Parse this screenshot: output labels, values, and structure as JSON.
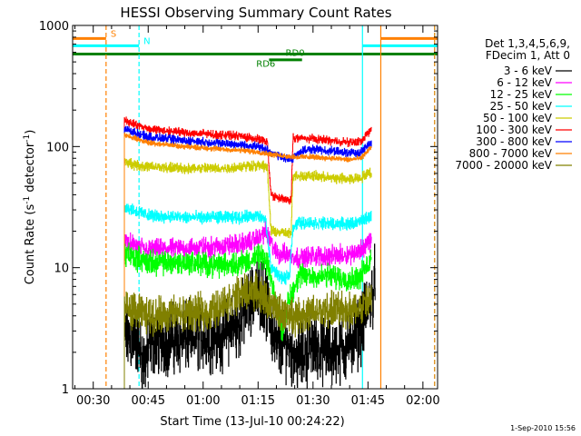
{
  "chart_data": {
    "type": "line",
    "title": "HESSI Observing Summary Count Rates",
    "xlabel": "Start Time (13-Jul-10 00:24:22)",
    "ylabel_main": "Count Rate (s",
    "ylabel_sup1": "-1",
    "ylabel_mid": " detector",
    "ylabel_sup2": "-1",
    "ylabel_end": ")",
    "yscale": "log",
    "xlim_min": [
      24.37,
      124.0
    ],
    "ylim": [
      1,
      1000
    ],
    "x_ticks": [
      {
        "label": "00:30",
        "min": 30
      },
      {
        "label": "00:45",
        "min": 45
      },
      {
        "label": "01:00",
        "min": 60
      },
      {
        "label": "01:15",
        "min": 75
      },
      {
        "label": "01:30",
        "min": 90
      },
      {
        "label": "01:45",
        "min": 105
      },
      {
        "label": "02:00",
        "min": 120
      }
    ],
    "y_ticks": [
      {
        "label": "1",
        "v": 1
      },
      {
        "label": "10",
        "v": 10
      },
      {
        "label": "100",
        "v": 100
      },
      {
        "label": "1000",
        "v": 1000
      }
    ],
    "legend_header": [
      "Det 1,3,4,5,6,9,",
      "FDecim 1, Att 0"
    ],
    "legend_position": "right",
    "flags": [
      {
        "label": "S",
        "color": "#ff8000",
        "segments": [
          [
            24.37,
            33.5
          ],
          [
            108.5,
            124
          ]
        ],
        "level": 780,
        "marker_min": 33.5
      },
      {
        "label": "N",
        "color": "#00ffff",
        "segments": [
          [
            24.37,
            42.5
          ],
          [
            103.5,
            124
          ]
        ],
        "level": 680,
        "marker_min": 42.5
      },
      {
        "label": "RD0",
        "color": "#008000",
        "segments": [
          [
            24.37,
            124
          ]
        ],
        "level": 580,
        "label_min": 82.5,
        "label_level": 600
      },
      {
        "label": "RD6",
        "color": "#008000",
        "segments": [
          [
            78,
            87
          ]
        ],
        "level": 520,
        "label_min": 74.5,
        "label_level": 490
      }
    ],
    "vlines": [
      {
        "min": 33.5,
        "color": "#ff8000",
        "style": "dashed"
      },
      {
        "min": 42.5,
        "color": "#00ffff",
        "style": "dashed"
      },
      {
        "min": 103.5,
        "color": "#00ffff",
        "style": "solid"
      },
      {
        "min": 108.5,
        "color": "#ff8000",
        "style": "solid"
      },
      {
        "min": 123.2,
        "color": "#00ffff",
        "style": "dashed"
      },
      {
        "min": 123.2,
        "color": "#ff8000",
        "style": "dashed"
      }
    ],
    "series": [
      {
        "name": "3 - 6 keV",
        "color": "#000000",
        "noise": 0.35,
        "points": [
          [
            38.5,
            2.6
          ],
          [
            42,
            2.5
          ],
          [
            44,
            1.6
          ],
          [
            46,
            2.5
          ],
          [
            55,
            2.6
          ],
          [
            65,
            2.8
          ],
          [
            70,
            3.5
          ],
          [
            73,
            5.5
          ],
          [
            76,
            6.5
          ],
          [
            78,
            4.0
          ],
          [
            80,
            2.2
          ],
          [
            83,
            2.4
          ],
          [
            86,
            1.8
          ],
          [
            90,
            2.3
          ],
          [
            95,
            2.0
          ],
          [
            100,
            2.3
          ],
          [
            103,
            3.2
          ],
          [
            105,
            4.5
          ],
          [
            107,
            8.0
          ]
        ]
      },
      {
        "name": "6 - 12 keV",
        "color": "#ff00ff",
        "noise": 0.1,
        "points": [
          [
            38.5,
            16
          ],
          [
            42,
            15
          ],
          [
            45,
            14
          ],
          [
            55,
            14.5
          ],
          [
            65,
            15
          ],
          [
            72,
            16
          ],
          [
            75,
            17.5
          ],
          [
            77,
            20
          ],
          [
            78.5,
            16
          ],
          [
            80,
            13
          ],
          [
            83,
            13
          ],
          [
            86,
            12
          ],
          [
            90,
            12.5
          ],
          [
            95,
            12.5
          ],
          [
            100,
            13
          ],
          [
            103,
            14
          ],
          [
            106,
            17
          ]
        ]
      },
      {
        "name": "12 - 25 keV",
        "color": "#00ff00",
        "noise": 0.12,
        "points": [
          [
            38.5,
            13
          ],
          [
            42,
            12
          ],
          [
            45,
            11
          ],
          [
            55,
            11
          ],
          [
            65,
            10.5
          ],
          [
            70,
            11
          ],
          [
            73,
            11.5
          ],
          [
            76,
            12.5
          ],
          [
            78,
            9.5
          ],
          [
            80,
            5.0
          ],
          [
            81.5,
            3.0
          ],
          [
            83,
            5.0
          ],
          [
            86,
            8.5
          ],
          [
            90,
            8.5
          ],
          [
            95,
            8.5
          ],
          [
            100,
            8.0
          ],
          [
            103,
            8.5
          ],
          [
            106,
            12
          ]
        ]
      },
      {
        "name": "25 - 50 keV",
        "color": "#00ffff",
        "noise": 0.06,
        "points": [
          [
            38.5,
            32
          ],
          [
            42,
            29
          ],
          [
            45,
            27
          ],
          [
            55,
            26
          ],
          [
            65,
            26
          ],
          [
            70,
            26
          ],
          [
            74,
            27
          ],
          [
            77,
            25
          ],
          [
            78.5,
            10
          ],
          [
            80,
            9.0
          ],
          [
            82,
            8.0
          ],
          [
            83.5,
            8.5
          ],
          [
            84.5,
            22
          ],
          [
            86,
            23.5
          ],
          [
            90,
            23.5
          ],
          [
            95,
            23
          ],
          [
            100,
            23
          ],
          [
            103,
            24
          ],
          [
            106,
            27
          ]
        ]
      },
      {
        "name": "50 - 100 keV",
        "color": "#cccc00",
        "noise": 0.05,
        "points": [
          [
            38.5,
            75
          ],
          [
            42,
            70
          ],
          [
            45,
            68
          ],
          [
            55,
            66
          ],
          [
            65,
            66
          ],
          [
            70,
            68
          ],
          [
            74,
            70
          ],
          [
            77.5,
            68
          ],
          [
            78.5,
            20
          ],
          [
            84,
            19
          ],
          [
            84.5,
            58
          ],
          [
            90,
            57
          ],
          [
            95,
            55
          ],
          [
            100,
            54
          ],
          [
            103,
            55
          ],
          [
            106,
            62
          ]
        ]
      },
      {
        "name": "100 - 300 keV",
        "color": "#ff0000",
        "noise": 0.04,
        "points": [
          [
            38.5,
            165
          ],
          [
            42,
            150
          ],
          [
            45,
            140
          ],
          [
            55,
            130
          ],
          [
            65,
            125
          ],
          [
            70,
            122
          ],
          [
            75,
            115
          ],
          [
            77.5,
            108
          ],
          [
            78.5,
            40
          ],
          [
            80,
            38
          ],
          [
            83,
            36
          ],
          [
            84,
            36
          ],
          [
            84.5,
            118
          ],
          [
            90,
            116
          ],
          [
            95,
            112
          ],
          [
            100,
            108
          ],
          [
            103,
            110
          ],
          [
            106,
            140
          ]
        ]
      },
      {
        "name": "300 - 800 keV",
        "color": "#0000ff",
        "noise": 0.04,
        "points": [
          [
            38.5,
            140
          ],
          [
            42,
            128
          ],
          [
            45,
            120
          ],
          [
            55,
            112
          ],
          [
            65,
            106
          ],
          [
            70,
            104
          ],
          [
            75,
            100
          ],
          [
            78.5,
            90
          ],
          [
            81,
            82
          ],
          [
            84,
            78
          ],
          [
            86,
            90
          ],
          [
            90,
            95
          ],
          [
            95,
            92
          ],
          [
            100,
            88
          ],
          [
            103,
            90
          ],
          [
            106,
            110
          ]
        ]
      },
      {
        "name": "800 - 7000 keV",
        "color": "#ff8000",
        "noise": 0.025,
        "points": [
          [
            38.5,
            125
          ],
          [
            42,
            115
          ],
          [
            45,
            108
          ],
          [
            55,
            100
          ],
          [
            65,
            95
          ],
          [
            70,
            93
          ],
          [
            75,
            90
          ],
          [
            80,
            85
          ],
          [
            85,
            82
          ],
          [
            90,
            82
          ],
          [
            95,
            80
          ],
          [
            100,
            78
          ],
          [
            103,
            80
          ],
          [
            106,
            100
          ]
        ]
      },
      {
        "name": "7000 - 20000 keV",
        "color": "#808000",
        "noise": 0.18,
        "points": [
          [
            38.5,
            4.5
          ],
          [
            42,
            4.3
          ],
          [
            45,
            4.0
          ],
          [
            55,
            4.2
          ],
          [
            62,
            4.3
          ],
          [
            65,
            5.0
          ],
          [
            70,
            6.0
          ],
          [
            73,
            6.5
          ],
          [
            76,
            6.0
          ],
          [
            78,
            5.0
          ],
          [
            81,
            4.2
          ],
          [
            85,
            4.0
          ],
          [
            90,
            4.2
          ],
          [
            95,
            4.5
          ],
          [
            100,
            4.5
          ],
          [
            103,
            4.6
          ],
          [
            106,
            5.5
          ]
        ]
      }
    ]
  },
  "timestamp": "1-Sep-2010 15:56"
}
